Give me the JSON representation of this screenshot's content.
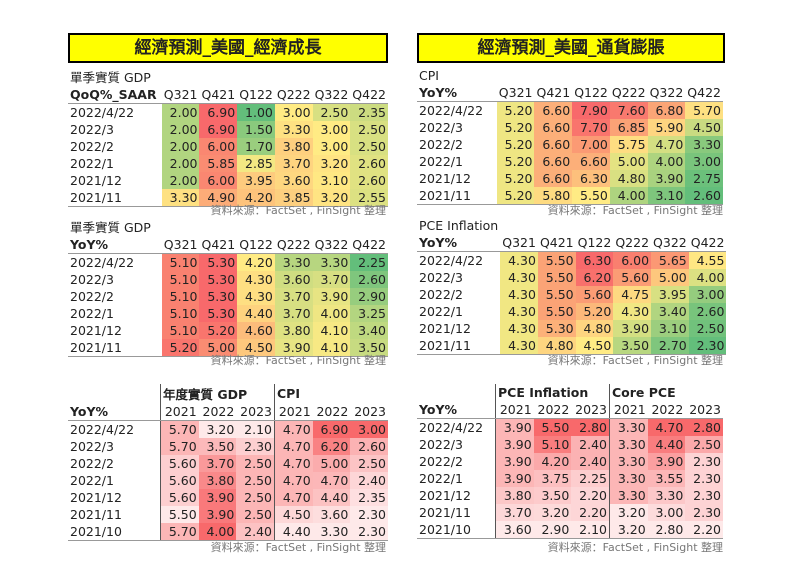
{
  "left_title": "經濟預測_美國_經濟成長",
  "right_title": "經濟預測_美國_通貨膨脹",
  "source": "資料來源：FactSet , FinSight 整理",
  "colors": {
    "green": "#63BE7B",
    "yellow": "#FFEB84",
    "red": "#F8696B",
    "white": "#FFFFFF"
  },
  "quarterly_tables": [
    {
      "id": "gdp-qoq",
      "label1": "單季實質 GDP",
      "label2": "QoQ%_SAAR",
      "cols": [
        "Q321",
        "Q421",
        "Q122",
        "Q222",
        "Q322",
        "Q422"
      ],
      "rows": [
        [
          "2022/4/22",
          [
            "2.00",
            "6.90",
            "1.00",
            "3.00",
            "2.50",
            "2.35"
          ]
        ],
        [
          "2022/3",
          [
            "2.00",
            "6.90",
            "1.50",
            "3.30",
            "3.00",
            "2.50"
          ]
        ],
        [
          "2022/2",
          [
            "2.00",
            "6.00",
            "1.70",
            "3.80",
            "3.00",
            "2.50"
          ]
        ],
        [
          "2022/1",
          [
            "2.00",
            "5.85",
            "2.85",
            "3.70",
            "3.20",
            "2.60"
          ]
        ],
        [
          "2021/12",
          [
            "2.00",
            "6.00",
            "3.95",
            "3.60",
            "3.10",
            "2.60"
          ]
        ],
        [
          "2021/11",
          [
            "3.30",
            "4.90",
            "4.20",
            "3.85",
            "3.20",
            "2.55"
          ]
        ]
      ]
    },
    {
      "id": "cpi-q",
      "label1": "CPI",
      "label2": "YoY%",
      "cols": [
        "Q321",
        "Q421",
        "Q122",
        "Q222",
        "Q322",
        "Q422"
      ],
      "rows": [
        [
          "2022/4/22",
          [
            "5.20",
            "6.60",
            "7.90",
            "7.60",
            "6.80",
            "5.70"
          ]
        ],
        [
          "2022/3",
          [
            "5.20",
            "6.60",
            "7.70",
            "6.85",
            "5.90",
            "4.50"
          ]
        ],
        [
          "2022/2",
          [
            "5.20",
            "6.60",
            "7.00",
            "5.75",
            "4.70",
            "3.30"
          ]
        ],
        [
          "2022/1",
          [
            "5.20",
            "6.60",
            "6.60",
            "5.00",
            "4.00",
            "3.00"
          ]
        ],
        [
          "2021/12",
          [
            "5.20",
            "6.60",
            "6.30",
            "4.80",
            "3.90",
            "2.75"
          ]
        ],
        [
          "2021/11",
          [
            "5.20",
            "5.80",
            "5.50",
            "4.00",
            "3.10",
            "2.60"
          ]
        ]
      ]
    },
    {
      "id": "gdp-yoy",
      "label1": "單季實質 GDP",
      "label2": "YoY%",
      "cols": [
        "Q321",
        "Q421",
        "Q122",
        "Q222",
        "Q322",
        "Q422"
      ],
      "rows": [
        [
          "2022/4/22",
          [
            "5.10",
            "5.30",
            "4.20",
            "3.30",
            "3.30",
            "2.25"
          ]
        ],
        [
          "2022/3",
          [
            "5.10",
            "5.30",
            "4.30",
            "3.60",
            "3.70",
            "2.60"
          ]
        ],
        [
          "2022/2",
          [
            "5.10",
            "5.30",
            "4.30",
            "3.70",
            "3.90",
            "2.90"
          ]
        ],
        [
          "2022/1",
          [
            "5.10",
            "5.30",
            "4.40",
            "3.70",
            "4.00",
            "3.25"
          ]
        ],
        [
          "2021/12",
          [
            "5.10",
            "5.20",
            "4.60",
            "3.80",
            "4.10",
            "3.40"
          ]
        ],
        [
          "2021/11",
          [
            "5.20",
            "5.00",
            "4.50",
            "3.90",
            "4.10",
            "3.50"
          ]
        ]
      ]
    },
    {
      "id": "pce-q",
      "label1": "PCE Inflation",
      "label2": "YoY%",
      "cols": [
        "Q321",
        "Q421",
        "Q122",
        "Q222",
        "Q322",
        "Q422"
      ],
      "rows": [
        [
          "2022/4/22",
          [
            "4.30",
            "5.50",
            "6.30",
            "6.00",
            "5.65",
            "4.55"
          ]
        ],
        [
          "2022/3",
          [
            "4.30",
            "5.50",
            "6.20",
            "5.60",
            "5.00",
            "4.00"
          ]
        ],
        [
          "2022/2",
          [
            "4.30",
            "5.50",
            "5.60",
            "4.75",
            "3.95",
            "3.00"
          ]
        ],
        [
          "2022/1",
          [
            "4.30",
            "5.50",
            "5.20",
            "4.30",
            "3.40",
            "2.60"
          ]
        ],
        [
          "2021/12",
          [
            "4.30",
            "5.30",
            "4.80",
            "3.90",
            "3.10",
            "2.50"
          ]
        ],
        [
          "2021/11",
          [
            "4.30",
            "4.80",
            "4.50",
            "3.50",
            "2.70",
            "2.30"
          ]
        ]
      ]
    }
  ],
  "annual_tables": [
    {
      "id": "gdp-cpi-annual",
      "label": "YoY%",
      "group1": "年度實質 GDP",
      "group2": "CPI",
      "cols": [
        "2021",
        "2022",
        "2023",
        "2021",
        "2022",
        "2023"
      ],
      "rows": [
        [
          "2022/4/22",
          [
            "5.70",
            "3.20",
            "2.10",
            "4.70",
            "6.90",
            "3.00"
          ]
        ],
        [
          "2022/3",
          [
            "5.70",
            "3.50",
            "2.30",
            "4.70",
            "6.20",
            "2.60"
          ]
        ],
        [
          "2022/2",
          [
            "5.60",
            "3.70",
            "2.50",
            "4.70",
            "5.00",
            "2.50"
          ]
        ],
        [
          "2022/1",
          [
            "5.60",
            "3.80",
            "2.50",
            "4.70",
            "4.70",
            "2.40"
          ]
        ],
        [
          "2021/12",
          [
            "5.60",
            "3.90",
            "2.50",
            "4.70",
            "4.40",
            "2.35"
          ]
        ],
        [
          "2021/11",
          [
            "5.50",
            "3.90",
            "2.50",
            "4.50",
            "3.60",
            "2.30"
          ]
        ],
        [
          "2021/10",
          [
            "5.70",
            "4.00",
            "2.40",
            "4.40",
            "3.30",
            "2.30"
          ]
        ]
      ]
    },
    {
      "id": "pce-annual",
      "label": "YoY%",
      "group1": "PCE Inflation",
      "group2": "Core PCE",
      "cols": [
        "2021",
        "2022",
        "2023",
        "2021",
        "2022",
        "2023"
      ],
      "rows": [
        [
          "2022/4/22",
          [
            "3.90",
            "5.50",
            "2.80",
            "3.30",
            "4.70",
            "2.80"
          ]
        ],
        [
          "2022/3",
          [
            "3.90",
            "5.10",
            "2.40",
            "3.30",
            "4.40",
            "2.50"
          ]
        ],
        [
          "2022/2",
          [
            "3.90",
            "4.20",
            "2.40",
            "3.30",
            "3.90",
            "2.30"
          ]
        ],
        [
          "2022/1",
          [
            "3.90",
            "3.75",
            "2.25",
            "3.30",
            "3.55",
            "2.30"
          ]
        ],
        [
          "2021/12",
          [
            "3.80",
            "3.50",
            "2.20",
            "3.30",
            "3.30",
            "2.30"
          ]
        ],
        [
          "2021/11",
          [
            "3.70",
            "3.20",
            "2.20",
            "3.20",
            "3.00",
            "2.30"
          ]
        ],
        [
          "2021/10",
          [
            "3.60",
            "2.90",
            "2.10",
            "3.20",
            "2.80",
            "2.20"
          ]
        ]
      ]
    }
  ]
}
